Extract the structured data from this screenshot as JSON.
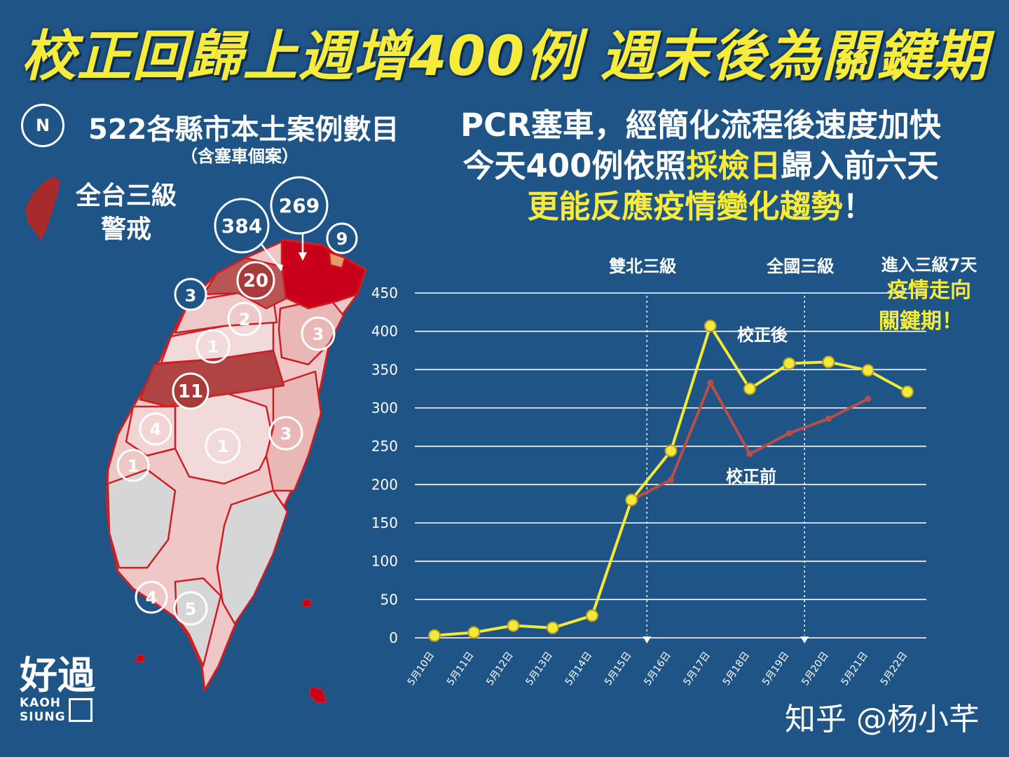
{
  "headline": "校正回歸上週增400例 週末後為關鍵期",
  "north_label": "N",
  "map_panel": {
    "title": "522各縣市本土案例數目",
    "subtitle": "（含塞車個案）",
    "alert_line1": "全台三級",
    "alert_line2": "警戒"
  },
  "info": {
    "line1": "PCR塞車，經簡化流程後速度加快",
    "line2_pre": "今天400例依照",
    "line2_hl": "採檢日",
    "line2_post": "歸入前六天",
    "line3_hl": "更能反應疫情變化趨勢",
    "line3_post": "！"
  },
  "colors": {
    "background": "#1f5486",
    "highlight": "#f7ec3b",
    "corrected_series": "#f2ea3a",
    "before_series": "#b94d48",
    "map_outline": "#cc1f24",
    "map_dark": "#c8001a",
    "map_mid": "#b04444",
    "map_light": "#f0cccc",
    "map_gray": "#d6d6d6"
  },
  "map_labels": [
    "384",
    "269",
    "9",
    "20",
    "3",
    "2",
    "3",
    "1",
    "11",
    "4",
    "1",
    "3",
    "1",
    "4",
    "5"
  ],
  "chart_data": {
    "type": "line",
    "categories": [
      "5月10日",
      "5月11日",
      "5月12日",
      "5月13日",
      "5月14日",
      "5月15日",
      "5月16日",
      "5月17日",
      "5月18日",
      "5月19日",
      "5月20日",
      "5月21日",
      "5月22日"
    ],
    "series": [
      {
        "name": "校正後",
        "color": "#f2ea3a",
        "marker": true,
        "values": [
          3,
          7,
          16,
          13,
          29,
          180,
          244,
          407,
          325,
          358,
          360,
          349,
          321
        ]
      },
      {
        "name": "校正前",
        "color": "#b94d48",
        "marker": false,
        "values": [
          3,
          7,
          16,
          13,
          29,
          180,
          206,
          333,
          240,
          267,
          286,
          312,
          null
        ]
      }
    ],
    "yticks": [
      0,
      50,
      100,
      150,
      200,
      250,
      300,
      350,
      400,
      450
    ],
    "ylim": [
      0,
      450
    ],
    "grid": true,
    "annotations": [
      {
        "text": "雙北三級",
        "category": "5月15日"
      },
      {
        "text": "全國三級",
        "category": "5月19日"
      }
    ],
    "note": {
      "line1": "進入三級7天",
      "line2": "疫情走向",
      "line3": "關鍵期！"
    }
  },
  "brand": {
    "big1": "好過",
    "small1": "KAOH",
    "small2": "SIUNG"
  },
  "watermark": "知乎 @杨小芊"
}
